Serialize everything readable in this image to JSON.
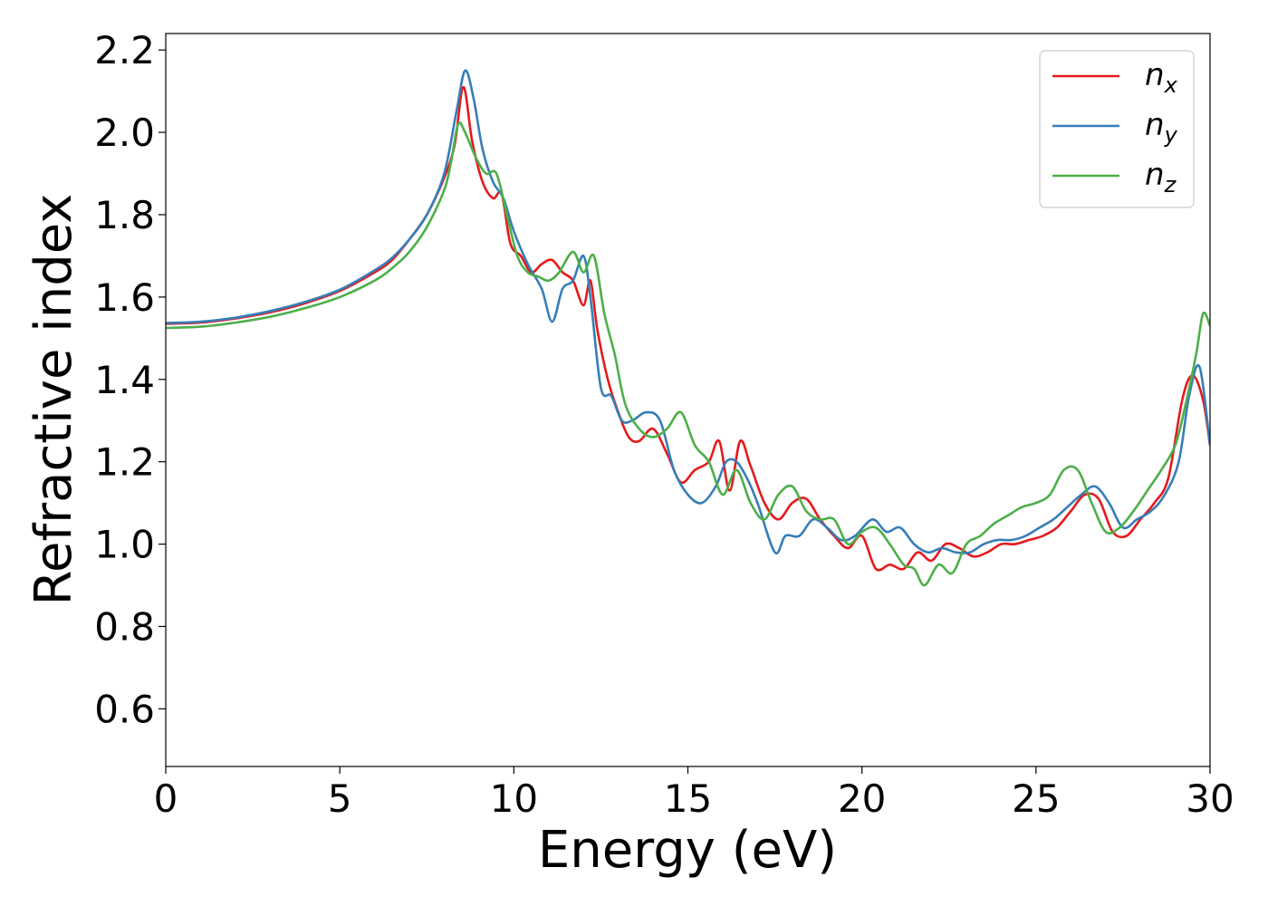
{
  "chart_data": {
    "type": "line",
    "title": "",
    "xlabel": "Energy (eV)",
    "ylabel": "Refractive index",
    "xlim": [
      0,
      30
    ],
    "ylim": [
      0.46,
      2.24
    ],
    "xticks": [
      0,
      5,
      10,
      15,
      20,
      25,
      30
    ],
    "yticks": [
      0.6,
      0.8,
      1.0,
      1.2,
      1.4,
      1.6,
      1.8,
      2.0,
      2.2
    ],
    "xtick_labels": [
      "0",
      "5",
      "10",
      "15",
      "20",
      "25",
      "30"
    ],
    "ytick_labels": [
      "0.6",
      "0.8",
      "1.0",
      "1.2",
      "1.4",
      "1.6",
      "1.8",
      "2.0",
      "2.2"
    ],
    "grid": false,
    "legend_position": "top-right",
    "series": [
      {
        "name": "n_x",
        "label_main": "n",
        "label_sub": "x",
        "color": "#e41a1c",
        "x": [
          0,
          1,
          2,
          3,
          4,
          5,
          6,
          6.5,
          7,
          7.5,
          8,
          8.3,
          8.55,
          8.8,
          9.1,
          9.4,
          9.65,
          9.9,
          10.2,
          10.5,
          10.8,
          11.1,
          11.4,
          11.7,
          12.0,
          12.2,
          12.4,
          12.7,
          13.0,
          13.3,
          13.6,
          14.0,
          14.4,
          14.8,
          15.2,
          15.6,
          15.9,
          16.2,
          16.5,
          16.8,
          17.2,
          17.6,
          18.0,
          18.4,
          18.8,
          19.2,
          19.6,
          20.0,
          20.4,
          20.8,
          21.2,
          21.6,
          22.0,
          22.4,
          22.8,
          23.2,
          23.6,
          24.0,
          24.4,
          24.8,
          25.2,
          25.6,
          26.0,
          26.4,
          26.8,
          27.2,
          27.6,
          28.0,
          28.4,
          28.8,
          29.2,
          29.5,
          29.8,
          30.0
        ],
        "y": [
          1.535,
          1.538,
          1.548,
          1.563,
          1.585,
          1.615,
          1.66,
          1.69,
          1.74,
          1.8,
          1.89,
          1.97,
          2.11,
          1.98,
          1.88,
          1.84,
          1.85,
          1.73,
          1.7,
          1.66,
          1.68,
          1.69,
          1.66,
          1.64,
          1.58,
          1.64,
          1.52,
          1.4,
          1.32,
          1.26,
          1.25,
          1.28,
          1.22,
          1.15,
          1.18,
          1.2,
          1.25,
          1.13,
          1.25,
          1.19,
          1.1,
          1.06,
          1.1,
          1.11,
          1.06,
          1.02,
          0.99,
          1.02,
          0.94,
          0.95,
          0.94,
          0.98,
          0.96,
          1.0,
          0.99,
          0.97,
          0.98,
          1.0,
          1.0,
          1.01,
          1.02,
          1.04,
          1.08,
          1.12,
          1.11,
          1.03,
          1.02,
          1.06,
          1.1,
          1.16,
          1.35,
          1.41,
          1.35,
          1.24
        ]
      },
      {
        "name": "n_y",
        "label_main": "n",
        "label_sub": "y",
        "color": "#377eb8",
        "x": [
          0,
          1,
          2,
          3,
          4,
          5,
          6,
          6.5,
          7,
          7.5,
          8,
          8.35,
          8.6,
          8.85,
          9.1,
          9.4,
          9.7,
          10.0,
          10.4,
          10.8,
          11.1,
          11.4,
          11.7,
          12.0,
          12.2,
          12.5,
          12.8,
          13.1,
          13.4,
          13.8,
          14.2,
          14.6,
          15.0,
          15.4,
          15.8,
          16.1,
          16.4,
          16.7,
          17.0,
          17.5,
          17.8,
          18.2,
          18.6,
          19.0,
          19.4,
          19.8,
          20.3,
          20.7,
          21.1,
          21.5,
          21.9,
          22.3,
          22.7,
          23.1,
          23.5,
          23.9,
          24.3,
          24.7,
          25.1,
          25.5,
          25.9,
          26.3,
          26.7,
          27.1,
          27.5,
          27.9,
          28.3,
          28.7,
          29.1,
          29.4,
          29.7,
          30.0
        ],
        "y": [
          1.537,
          1.54,
          1.55,
          1.566,
          1.588,
          1.618,
          1.665,
          1.695,
          1.74,
          1.8,
          1.9,
          2.05,
          2.15,
          2.08,
          1.96,
          1.88,
          1.84,
          1.76,
          1.68,
          1.62,
          1.54,
          1.62,
          1.64,
          1.7,
          1.6,
          1.38,
          1.36,
          1.3,
          1.3,
          1.32,
          1.3,
          1.18,
          1.12,
          1.1,
          1.14,
          1.2,
          1.2,
          1.16,
          1.1,
          0.98,
          1.02,
          1.02,
          1.06,
          1.04,
          1.01,
          1.02,
          1.06,
          1.03,
          1.04,
          1.0,
          0.98,
          0.99,
          0.98,
          0.98,
          1.0,
          1.01,
          1.01,
          1.02,
          1.04,
          1.06,
          1.09,
          1.12,
          1.14,
          1.1,
          1.04,
          1.06,
          1.08,
          1.12,
          1.2,
          1.36,
          1.43,
          1.24
        ]
      },
      {
        "name": "n_z",
        "label_main": "n",
        "label_sub": "z",
        "color": "#4daf4a",
        "x": [
          0,
          1,
          2,
          3,
          4,
          5,
          6,
          6.5,
          7,
          7.5,
          8,
          8.2,
          8.4,
          8.6,
          8.9,
          9.2,
          9.5,
          9.8,
          10.1,
          10.4,
          10.7,
          11.0,
          11.3,
          11.7,
          12.0,
          12.3,
          12.6,
          12.9,
          13.2,
          13.6,
          14.0,
          14.4,
          14.8,
          15.2,
          15.6,
          16.0,
          16.4,
          16.8,
          17.2,
          17.6,
          18.0,
          18.4,
          18.8,
          19.2,
          19.6,
          20.0,
          20.4,
          20.8,
          21.2,
          21.5,
          21.8,
          22.2,
          22.6,
          23.0,
          23.4,
          23.8,
          24.2,
          24.6,
          25.0,
          25.4,
          25.8,
          26.2,
          26.6,
          27.0,
          27.4,
          27.8,
          28.2,
          28.6,
          29.0,
          29.3,
          29.6,
          29.8,
          30.0
        ],
        "y": [
          1.525,
          1.528,
          1.538,
          1.552,
          1.573,
          1.6,
          1.64,
          1.67,
          1.71,
          1.77,
          1.86,
          1.93,
          2.02,
          2.0,
          1.94,
          1.9,
          1.9,
          1.8,
          1.7,
          1.66,
          1.65,
          1.64,
          1.66,
          1.71,
          1.66,
          1.7,
          1.56,
          1.46,
          1.34,
          1.28,
          1.26,
          1.28,
          1.32,
          1.24,
          1.2,
          1.12,
          1.18,
          1.1,
          1.06,
          1.12,
          1.14,
          1.08,
          1.06,
          1.06,
          1.0,
          1.03,
          1.04,
          1.0,
          0.95,
          0.94,
          0.9,
          0.95,
          0.93,
          1.0,
          1.02,
          1.05,
          1.07,
          1.09,
          1.1,
          1.12,
          1.18,
          1.18,
          1.1,
          1.03,
          1.04,
          1.08,
          1.13,
          1.18,
          1.24,
          1.34,
          1.46,
          1.56,
          1.53
        ]
      }
    ]
  }
}
